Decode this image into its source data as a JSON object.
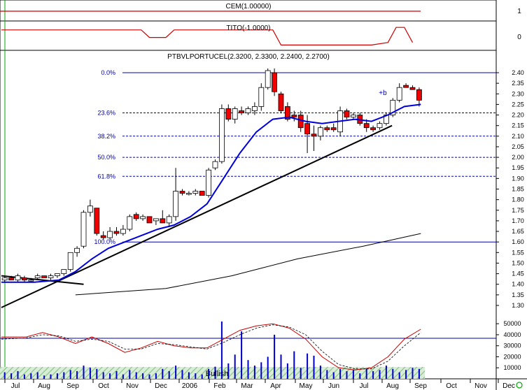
{
  "panels": {
    "cem": {
      "title": "CEM(1.00000)",
      "ticks": [
        "1"
      ]
    },
    "tito": {
      "title": "TITO(-1.0000)",
      "ticks": [
        "0"
      ]
    },
    "price": {
      "title": "PTBVLPORTUCEL(2.3200, 2.3300, 2.2400, 2.2700)",
      "annotation": "+b",
      "ticks": [
        "2.40",
        "2.35",
        "2.30",
        "2.25",
        "2.20",
        "2.15",
        "2.10",
        "2.05",
        "2.00",
        "1.95",
        "1.90",
        "1.85",
        "1.80",
        "1.75",
        "1.70",
        "1.65",
        "1.60",
        "1.55",
        "1.50",
        "1.45",
        "1.40",
        "1.35",
        "1.30"
      ]
    },
    "volume": {
      "ticks": [
        "50000",
        "40000",
        "30000",
        "20000",
        "10000"
      ],
      "label": "Bullish"
    }
  },
  "x_axis": {
    "labels": [
      "Jul",
      "Aug",
      "Sep",
      "Oct",
      "Nov",
      "Dec",
      "2006",
      "Feb",
      "Mar",
      "Apr",
      "May",
      "Jun",
      "Jul",
      "Aug",
      "Sep",
      "Oct",
      "Nov",
      "Dec"
    ]
  },
  "colors": {
    "up_candle": "#ffffff",
    "down_candle": "#ee0000",
    "ma_line": "#0000dd",
    "fib_line": "#0000aa",
    "trend_line": "#000000",
    "indicator_line": "#cc0000",
    "grid_green": "#00aa00",
    "bullish_band": "#bfe3bf"
  },
  "chart_data": {
    "type": "candlestick",
    "title": "PTBVLPORTUCEL(2.3200, 2.3300, 2.2400, 2.2700)",
    "last_bar": {
      "open": 2.32,
      "high": 2.33,
      "low": 2.24,
      "close": 2.27
    },
    "ylim": [
      1.27,
      2.43
    ],
    "x_range": [
      "Jul 2005",
      "Dec 2006"
    ],
    "fibonacci": [
      {
        "label": "0.0%",
        "value": 2.4
      },
      {
        "label": "23.6%",
        "value": 2.21
      },
      {
        "label": "38.2%",
        "value": 2.1
      },
      {
        "label": "50.0%",
        "value": 2.0
      },
      {
        "label": "61.8%",
        "value": 1.91
      },
      {
        "label": "100.0%",
        "value": 1.6
      }
    ],
    "candles": [
      [
        0.4,
        1.42,
        1.44,
        1.41,
        1.43
      ],
      [
        1.2,
        1.43,
        1.44,
        1.42,
        1.42
      ],
      [
        2.0,
        1.42,
        1.45,
        1.41,
        1.44
      ],
      [
        2.8,
        1.43,
        1.44,
        1.41,
        1.42
      ],
      [
        3.6,
        1.42,
        1.43,
        1.41,
        1.42
      ],
      [
        4.4,
        1.43,
        1.45,
        1.42,
        1.44
      ],
      [
        5.2,
        1.44,
        1.44,
        1.43,
        1.43
      ],
      [
        6.0,
        1.43,
        1.45,
        1.42,
        1.44
      ],
      [
        6.8,
        1.44,
        1.45,
        1.43,
        1.45
      ],
      [
        7.6,
        1.45,
        1.47,
        1.44,
        1.47
      ],
      [
        8.4,
        1.47,
        1.55,
        1.46,
        1.55
      ],
      [
        9.2,
        1.55,
        1.58,
        1.53,
        1.57
      ],
      [
        10.0,
        1.58,
        1.75,
        1.57,
        1.74
      ],
      [
        10.8,
        1.74,
        1.8,
        1.72,
        1.77
      ],
      [
        11.6,
        1.76,
        1.76,
        1.63,
        1.64
      ],
      [
        12.4,
        1.63,
        1.65,
        1.61,
        1.62
      ],
      [
        13.2,
        1.62,
        1.67,
        1.61,
        1.65
      ],
      [
        14.0,
        1.65,
        1.67,
        1.63,
        1.64
      ],
      [
        14.8,
        1.64,
        1.68,
        1.63,
        1.66
      ],
      [
        15.6,
        1.66,
        1.73,
        1.65,
        1.72
      ],
      [
        16.4,
        1.73,
        1.74,
        1.7,
        1.71
      ],
      [
        17.2,
        1.71,
        1.73,
        1.7,
        1.72
      ],
      [
        18.0,
        1.72,
        1.72,
        1.69,
        1.69
      ],
      [
        18.8,
        1.7,
        1.71,
        1.68,
        1.71
      ],
      [
        19.6,
        1.71,
        1.75,
        1.69,
        1.69
      ],
      [
        20.4,
        1.69,
        1.73,
        1.67,
        1.72
      ],
      [
        21.2,
        1.72,
        1.95,
        1.7,
        1.84
      ],
      [
        22.0,
        1.84,
        1.85,
        1.82,
        1.83
      ],
      [
        22.8,
        1.83,
        1.84,
        1.82,
        1.83
      ],
      [
        23.6,
        1.83,
        1.85,
        1.82,
        1.84
      ],
      [
        24.4,
        1.84,
        1.84,
        1.82,
        1.82
      ],
      [
        25.2,
        1.82,
        1.95,
        1.81,
        1.94
      ],
      [
        26.0,
        1.95,
        1.99,
        1.94,
        1.98
      ],
      [
        26.8,
        1.98,
        2.25,
        1.97,
        2.23
      ],
      [
        27.6,
        2.23,
        2.25,
        2.17,
        2.18
      ],
      [
        28.4,
        2.18,
        2.24,
        2.16,
        2.23
      ],
      [
        29.2,
        2.22,
        2.24,
        2.2,
        2.21
      ],
      [
        30.0,
        2.21,
        2.24,
        2.2,
        2.23
      ],
      [
        30.8,
        2.22,
        2.26,
        2.2,
        2.24
      ],
      [
        31.6,
        2.24,
        2.35,
        2.22,
        2.33
      ],
      [
        32.4,
        2.33,
        2.42,
        2.32,
        2.41
      ],
      [
        33.2,
        2.4,
        2.42,
        2.29,
        2.31
      ],
      [
        34.0,
        2.3,
        2.31,
        2.21,
        2.22
      ],
      [
        34.8,
        2.24,
        2.26,
        2.17,
        2.18
      ],
      [
        35.6,
        2.2,
        2.22,
        2.17,
        2.19
      ],
      [
        36.4,
        2.2,
        2.22,
        2.12,
        2.14
      ],
      [
        37.2,
        2.16,
        2.2,
        2.02,
        2.11
      ],
      [
        38.0,
        2.11,
        2.15,
        2.03,
        2.1
      ],
      [
        38.8,
        2.1,
        2.15,
        2.08,
        2.14
      ],
      [
        39.6,
        2.14,
        2.15,
        2.12,
        2.13
      ],
      [
        40.4,
        2.14,
        2.16,
        2.12,
        2.13
      ],
      [
        41.2,
        2.12,
        2.24,
        2.1,
        2.22
      ],
      [
        42.0,
        2.22,
        2.23,
        2.18,
        2.19
      ],
      [
        42.8,
        2.19,
        2.21,
        2.18,
        2.2
      ],
      [
        43.6,
        2.2,
        2.21,
        2.15,
        2.16
      ],
      [
        44.4,
        2.16,
        2.18,
        2.12,
        2.14
      ],
      [
        45.2,
        2.14,
        2.15,
        2.12,
        2.13
      ],
      [
        46.0,
        2.14,
        2.17,
        2.13,
        2.16
      ],
      [
        46.8,
        2.16,
        2.21,
        2.15,
        2.2
      ],
      [
        47.6,
        2.2,
        2.28,
        2.19,
        2.27
      ],
      [
        48.4,
        2.27,
        2.35,
        2.26,
        2.33
      ],
      [
        49.2,
        2.34,
        2.35,
        2.33,
        2.33
      ],
      [
        50.0,
        2.33,
        2.34,
        2.32,
        2.32
      ],
      [
        50.8,
        2.32,
        2.33,
        2.24,
        2.27
      ]
    ],
    "moving_average": [
      [
        0,
        1.41
      ],
      [
        4,
        1.41
      ],
      [
        7,
        1.42
      ],
      [
        9,
        1.46
      ],
      [
        11,
        1.52
      ],
      [
        13,
        1.57
      ],
      [
        15,
        1.6
      ],
      [
        17,
        1.63
      ],
      [
        19,
        1.66
      ],
      [
        21,
        1.68
      ],
      [
        23,
        1.72
      ],
      [
        25,
        1.78
      ],
      [
        27,
        1.9
      ],
      [
        29,
        2.02
      ],
      [
        31,
        2.12
      ],
      [
        33,
        2.18
      ],
      [
        35,
        2.19
      ],
      [
        37,
        2.17
      ],
      [
        39,
        2.16
      ],
      [
        41,
        2.17
      ],
      [
        43,
        2.18
      ],
      [
        45,
        2.17
      ],
      [
        47,
        2.2
      ],
      [
        49,
        2.24
      ],
      [
        51,
        2.25
      ]
    ],
    "long_average": [
      [
        9,
        1.35
      ],
      [
        20,
        1.38
      ],
      [
        28,
        1.44
      ],
      [
        36,
        1.52
      ],
      [
        44,
        1.58
      ],
      [
        51,
        1.64
      ]
    ],
    "trend_lines": [
      {
        "from": [
          0,
          1.29
        ],
        "to": [
          47.5,
          2.15
        ]
      },
      {
        "from": [
          0,
          1.44
        ],
        "to": [
          10,
          1.4
        ]
      }
    ],
    "volume": [
      [
        0.4,
        6000
      ],
      [
        1.2,
        5000
      ],
      [
        2.0,
        7000
      ],
      [
        2.8,
        4000
      ],
      [
        3.6,
        5000
      ],
      [
        4.4,
        6000
      ],
      [
        5.2,
        3000
      ],
      [
        6.0,
        4000
      ],
      [
        6.8,
        5000
      ],
      [
        7.6,
        6000
      ],
      [
        8.4,
        8000
      ],
      [
        9.2,
        7000
      ],
      [
        10.0,
        12000
      ],
      [
        10.8,
        10000
      ],
      [
        11.6,
        9000
      ],
      [
        12.4,
        6000
      ],
      [
        13.2,
        5000
      ],
      [
        14.0,
        7000
      ],
      [
        14.8,
        4000
      ],
      [
        15.6,
        8000
      ],
      [
        16.4,
        6000
      ],
      [
        17.2,
        5000
      ],
      [
        18.0,
        4000
      ],
      [
        18.8,
        5000
      ],
      [
        19.6,
        9000
      ],
      [
        20.4,
        7000
      ],
      [
        21.2,
        12000
      ],
      [
        22.0,
        8000
      ],
      [
        22.8,
        6000
      ],
      [
        23.6,
        5000
      ],
      [
        24.4,
        4000
      ],
      [
        25.2,
        9000
      ],
      [
        26.0,
        11000
      ],
      [
        26.8,
        52000
      ],
      [
        27.6,
        14000
      ],
      [
        28.4,
        22000
      ],
      [
        29.2,
        43000
      ],
      [
        30.0,
        17000
      ],
      [
        30.8,
        12000
      ],
      [
        31.6,
        15000
      ],
      [
        32.4,
        20000
      ],
      [
        33.2,
        40000
      ],
      [
        34.0,
        22000
      ],
      [
        34.8,
        14000
      ],
      [
        35.6,
        25000
      ],
      [
        36.4,
        10000
      ],
      [
        37.2,
        23000
      ],
      [
        38.0,
        21000
      ],
      [
        38.8,
        12000
      ],
      [
        39.6,
        8000
      ],
      [
        40.4,
        6000
      ],
      [
        41.2,
        9000
      ],
      [
        42.0,
        7000
      ],
      [
        42.8,
        8000
      ],
      [
        43.6,
        5000
      ],
      [
        44.4,
        9000
      ],
      [
        45.2,
        7000
      ],
      [
        46.0,
        8000
      ],
      [
        46.8,
        12000
      ],
      [
        47.6,
        9000
      ],
      [
        48.4,
        6000
      ],
      [
        49.2,
        8000
      ],
      [
        50.0,
        10000
      ],
      [
        50.8,
        9000
      ]
    ],
    "oscillator_solid": [
      [
        0,
        38000
      ],
      [
        3,
        38000
      ],
      [
        5,
        42000
      ],
      [
        7,
        38000
      ],
      [
        9,
        32000
      ],
      [
        11,
        38000
      ],
      [
        13,
        32000
      ],
      [
        15,
        24000
      ],
      [
        17,
        28000
      ],
      [
        19,
        34000
      ],
      [
        21,
        30000
      ],
      [
        23,
        28000
      ],
      [
        25,
        28000
      ],
      [
        27,
        36000
      ],
      [
        29,
        44000
      ],
      [
        31,
        48000
      ],
      [
        33,
        50000
      ],
      [
        35,
        46000
      ],
      [
        37,
        36000
      ],
      [
        39,
        20000
      ],
      [
        41,
        10000
      ],
      [
        43,
        8000
      ],
      [
        45,
        10000
      ],
      [
        47,
        20000
      ],
      [
        49,
        36000
      ],
      [
        51,
        45000
      ]
    ],
    "oscillator_dashed": [
      [
        0,
        36000
      ],
      [
        3,
        37000
      ],
      [
        5,
        40000
      ],
      [
        7,
        39000
      ],
      [
        9,
        34000
      ],
      [
        11,
        36000
      ],
      [
        13,
        34000
      ],
      [
        15,
        27000
      ],
      [
        17,
        27000
      ],
      [
        19,
        32000
      ],
      [
        21,
        31000
      ],
      [
        23,
        29000
      ],
      [
        25,
        27000
      ],
      [
        27,
        33000
      ],
      [
        29,
        40000
      ],
      [
        31,
        46000
      ],
      [
        33,
        49000
      ],
      [
        35,
        47000
      ],
      [
        37,
        40000
      ],
      [
        39,
        25000
      ],
      [
        41,
        13000
      ],
      [
        43,
        9000
      ],
      [
        45,
        9000
      ],
      [
        47,
        16000
      ],
      [
        49,
        30000
      ],
      [
        51,
        42000
      ]
    ],
    "volume_ylim": [
      0,
      54000
    ],
    "tito_profile": [
      [
        0,
        0.7
      ],
      [
        17,
        0.7
      ],
      [
        18,
        0.4
      ],
      [
        20,
        0.4
      ],
      [
        21,
        0.7
      ],
      [
        33,
        0.7
      ],
      [
        34,
        0.1
      ],
      [
        45,
        0.1
      ],
      [
        47,
        0.2
      ],
      [
        48,
        0.8
      ],
      [
        49,
        0.8
      ],
      [
        50,
        0.2
      ]
    ]
  }
}
